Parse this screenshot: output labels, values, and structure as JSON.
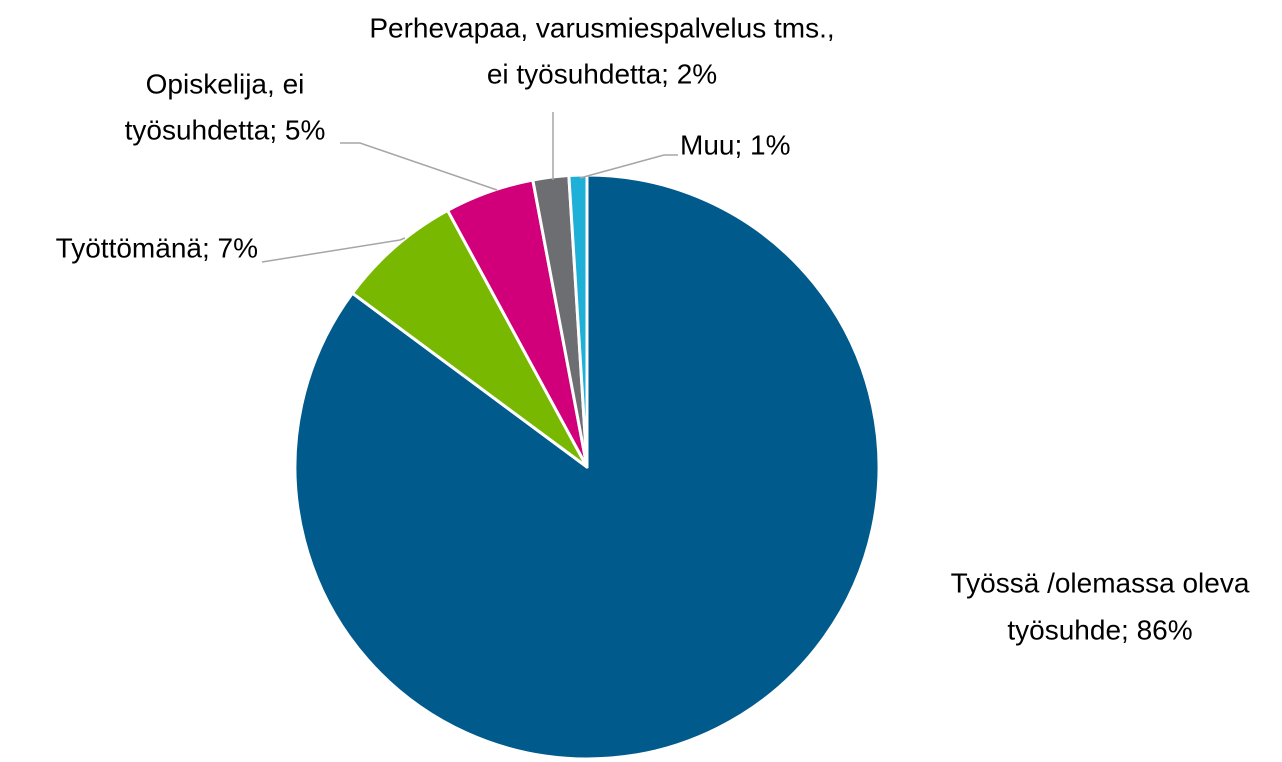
{
  "chart_data": {
    "type": "pie",
    "values": [
      86,
      7,
      5,
      2,
      1
    ],
    "value_labels": [
      [
        "Työssä /olemassa oleva",
        "työsuhde; 86%"
      ],
      [
        "Työttömänä; 7%"
      ],
      [
        "Opiskelija, ei",
        "työsuhdetta; 5%"
      ],
      [
        "Perhevapaa, varusmiespalvelus tms.,",
        "ei työsuhdetta; 2%"
      ],
      [
        "Muu; 1%"
      ]
    ],
    "colors": [
      "#005a8c",
      "#78b800",
      "#d1007a",
      "#6d6e71",
      "#1fb0d8"
    ]
  }
}
